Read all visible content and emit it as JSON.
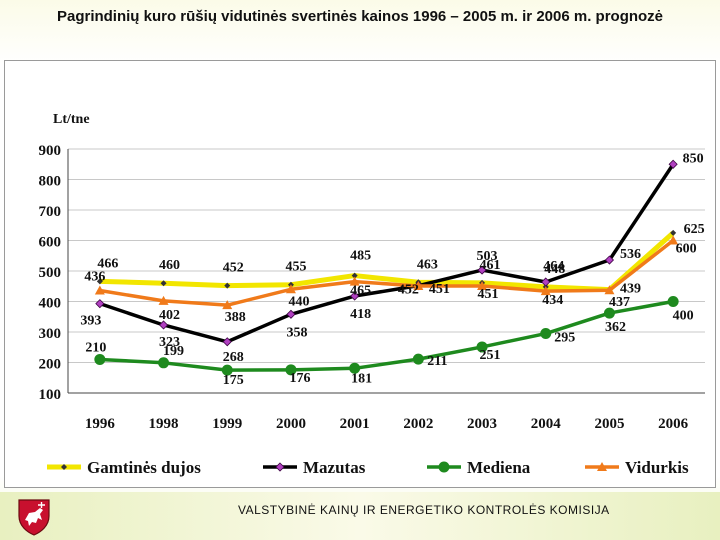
{
  "title": "Pagrindinių kuro rūšių vidutinės svertinės kainos 1996 – 2005 m. ir 2006 m. prognozė",
  "footer": {
    "text": "VALSTYBINĖ KAINŲ IR ENERGETIKO KONTROLĖS KOMISIJA",
    "emblem_icon": "vytis-coat-of-arms-icon"
  },
  "chart_data": {
    "type": "line",
    "title": "Pagrindinių kuro rūšių vidutinės svertinės kainos 1996 – 2005 m. ir 2006 m. prognozė",
    "xlabel": "",
    "ylabel": "Lt/tne",
    "ylim": [
      100,
      900
    ],
    "yticks": [
      "100",
      "200",
      "300",
      "400",
      "500",
      "600",
      "700",
      "800",
      "900"
    ],
    "categories": [
      "1996",
      "1998",
      "1999",
      "2000",
      "2001",
      "2002",
      "2003",
      "2004",
      "2005",
      "2006"
    ],
    "grid": true,
    "legend": "bottom",
    "series": [
      {
        "name": "Gamtinės dujos",
        "color": "#f2e600",
        "marker": "diamond",
        "values": [
          466,
          460,
          452,
          455,
          485,
          463,
          461,
          448,
          439,
          625
        ],
        "labels": [
          "466",
          "460",
          "452",
          "455",
          "485",
          "463",
          "461",
          "448",
          "439",
          "625"
        ]
      },
      {
        "name": "Mazutas",
        "color": "#000000",
        "marker": "diamond-purple",
        "values": [
          393,
          323,
          268,
          358,
          418,
          452,
          503,
          464,
          536,
          850
        ],
        "labels": [
          "393",
          "323",
          "268",
          "358",
          "418",
          "452",
          "503",
          "464",
          "536",
          "850"
        ]
      },
      {
        "name": "Mediena",
        "color": "#1e8a1e",
        "marker": "circle",
        "values": [
          210,
          199,
          175,
          176,
          181,
          211,
          251,
          295,
          362,
          400
        ],
        "labels": [
          "210",
          "199",
          "175",
          "176",
          "181",
          "211",
          "251",
          "295",
          "362",
          "400"
        ]
      },
      {
        "name": "Vidurkis",
        "color": "#f07a1a",
        "marker": "triangle",
        "values": [
          436,
          402,
          388,
          440,
          465,
          451,
          451,
          434,
          437,
          600
        ],
        "labels": [
          "436",
          "402",
          "388",
          "440",
          "465",
          "451",
          "451",
          "434",
          "437",
          "600"
        ]
      }
    ]
  }
}
